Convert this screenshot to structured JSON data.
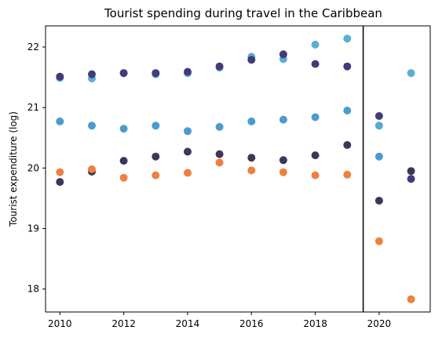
{
  "chart_data": {
    "type": "scatter",
    "title": "Tourist spending during travel in the Caribbean",
    "xlabel": "",
    "ylabel": "Tourist expenditure (log)",
    "xlim": [
      2009.55,
      2021.6
    ],
    "ylim": [
      17.62,
      22.35
    ],
    "xticks": [
      2010,
      2012,
      2014,
      2016,
      2018,
      2020
    ],
    "yticks": [
      18,
      19,
      20,
      21,
      22
    ],
    "vline_x": 2019.5,
    "grid": false,
    "legend": "none",
    "series": [
      {
        "color": "#5aaed6",
        "points": [
          [
            2010,
            21.49
          ],
          [
            2011,
            21.48
          ],
          [
            2012,
            21.57
          ],
          [
            2013,
            21.55
          ],
          [
            2014,
            21.57
          ],
          [
            2015,
            21.66
          ],
          [
            2016,
            21.84
          ],
          [
            2017,
            21.8
          ],
          [
            2018,
            22.04
          ],
          [
            2019,
            22.14
          ],
          [
            2021,
            21.57
          ]
        ]
      },
      {
        "color": "#433b78",
        "points": [
          [
            2010,
            21.51
          ],
          [
            2011,
            21.55
          ],
          [
            2012,
            21.57
          ],
          [
            2013,
            21.57
          ],
          [
            2014,
            21.59
          ],
          [
            2015,
            21.68
          ],
          [
            2016,
            21.79
          ],
          [
            2017,
            21.88
          ],
          [
            2018,
            21.72
          ],
          [
            2019,
            21.68
          ],
          [
            2020,
            20.86
          ],
          [
            2021,
            19.82
          ]
        ]
      },
      {
        "color": "#4a9ccf",
        "points": [
          [
            2010,
            20.77
          ],
          [
            2011,
            20.7
          ],
          [
            2012,
            20.65
          ],
          [
            2013,
            20.7
          ],
          [
            2014,
            20.61
          ],
          [
            2015,
            20.68
          ],
          [
            2016,
            20.77
          ],
          [
            2017,
            20.8
          ],
          [
            2018,
            20.84
          ],
          [
            2019,
            20.95
          ],
          [
            2020,
            20.19
          ]
        ]
      },
      {
        "color": "#5aa8cf",
        "points": [
          [
            2020,
            20.7
          ]
        ]
      },
      {
        "color": "#3e3659",
        "points": [
          [
            2010,
            19.77
          ],
          [
            2011,
            19.94
          ],
          [
            2012,
            20.12
          ],
          [
            2013,
            20.19
          ],
          [
            2014,
            20.27
          ],
          [
            2015,
            20.23
          ],
          [
            2016,
            20.17
          ],
          [
            2017,
            20.13
          ],
          [
            2018,
            20.21
          ],
          [
            2019,
            20.38
          ],
          [
            2020,
            19.46
          ],
          [
            2021,
            19.95
          ]
        ]
      },
      {
        "color": "#ee8040",
        "points": [
          [
            2010,
            19.93
          ],
          [
            2011,
            19.98
          ],
          [
            2012,
            19.84
          ],
          [
            2013,
            19.88
          ],
          [
            2014,
            19.92
          ],
          [
            2015,
            20.09
          ],
          [
            2016,
            19.96
          ],
          [
            2017,
            19.93
          ],
          [
            2018,
            19.88
          ],
          [
            2019,
            19.89
          ],
          [
            2020,
            18.79
          ],
          [
            2021,
            17.83
          ]
        ]
      }
    ]
  }
}
